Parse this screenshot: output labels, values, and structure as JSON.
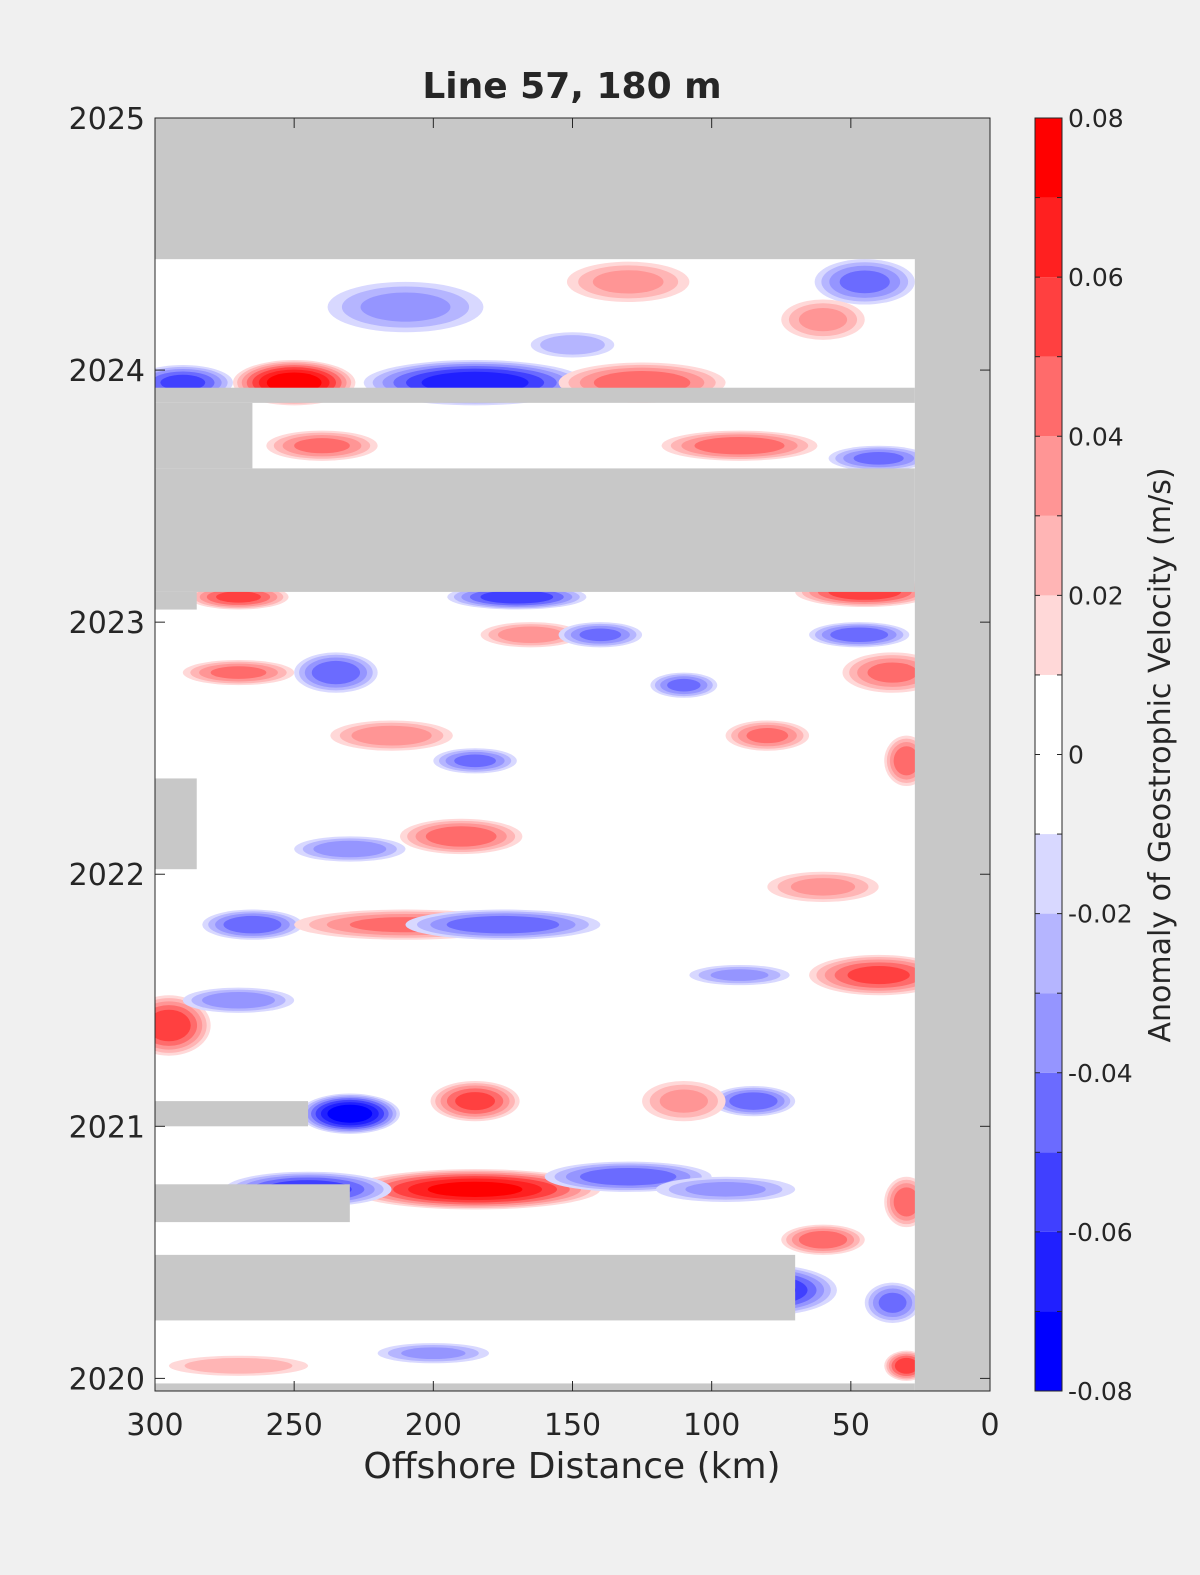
{
  "chart_data": {
    "type": "heatmap",
    "title": "Line 57, 180 m",
    "xlabel": "Offshore Distance (km)",
    "ylabel": "",
    "xlim": [
      300,
      0
    ],
    "ylim": [
      2019.95,
      2025
    ],
    "x_ticks": [
      "300",
      "250",
      "200",
      "150",
      "100",
      "50",
      "0"
    ],
    "x_tick_values": [
      300,
      250,
      200,
      150,
      100,
      50,
      0
    ],
    "y_ticks": [
      "2020",
      "2021",
      "2022",
      "2023",
      "2024",
      "2025"
    ],
    "y_tick_values": [
      2020,
      2021,
      2022,
      2023,
      2024,
      2025
    ],
    "colorbar": {
      "label": "Anomaly of Geostrophic Velocity (m/s)",
      "tick_labels": [
        "0.08",
        "0.06",
        "0.04",
        "0.02",
        "0",
        "-0.02",
        "-0.04",
        "-0.06",
        "-0.08"
      ],
      "tick_values": [
        0.08,
        0.06,
        0.04,
        0.02,
        0,
        -0.02,
        -0.04,
        -0.06,
        -0.08
      ],
      "levels": [
        -0.08,
        -0.07,
        -0.06,
        -0.05,
        -0.04,
        -0.03,
        -0.02,
        -0.01,
        0,
        0.01,
        0.02,
        0.03,
        0.04,
        0.05,
        0.06,
        0.07,
        0.08
      ],
      "colors": [
        "#0000ff",
        "#2020ff",
        "#4040ff",
        "#6b6bff",
        "#9595ff",
        "#b5b5ff",
        "#d8d8ff",
        "#ffffff",
        "#ffffff",
        "#ffd8d8",
        "#ffb5b5",
        "#ff9595",
        "#ff6b6b",
        "#ff4040",
        "#ff2020",
        "#ff0000"
      ]
    },
    "colors": {
      "no_data": "#c8c8c8",
      "background": "#f0f0f0",
      "axis": "#262626"
    },
    "no_data_regions": [
      {
        "x": [
          300,
          0
        ],
        "y": [
          2024.44,
          2025
        ]
      },
      {
        "x": [
          27,
          0
        ],
        "y": [
          2019.95,
          2025
        ]
      },
      {
        "x": [
          300,
          27
        ],
        "y": [
          2023.12,
          2023.61
        ]
      },
      {
        "x": [
          300,
          27
        ],
        "y": [
          2023.87,
          2023.93
        ]
      },
      {
        "x": [
          300,
          265
        ],
        "y": [
          2023.61,
          2023.87
        ]
      },
      {
        "x": [
          300,
          285
        ],
        "y": [
          2023.05,
          2023.12
        ]
      },
      {
        "x": [
          300,
          285
        ],
        "y": [
          2022.02,
          2022.38
        ]
      },
      {
        "x": [
          300,
          245
        ],
        "y": [
          2021.0,
          2021.1
        ]
      },
      {
        "x": [
          300,
          230
        ],
        "y": [
          2020.62,
          2020.77
        ]
      },
      {
        "x": [
          300,
          70
        ],
        "y": [
          2020.23,
          2020.49
        ]
      },
      {
        "x": [
          300,
          27
        ],
        "y": [
          2019.95,
          2019.98
        ]
      }
    ],
    "anomalies": [
      {
        "x": 250,
        "y": 2023.95,
        "v": 0.075,
        "rx": 22,
        "ry": 0.09
      },
      {
        "x": 290,
        "y": 2023.95,
        "v": -0.05,
        "rx": 18,
        "ry": 0.07
      },
      {
        "x": 185,
        "y": 2023.95,
        "v": -0.065,
        "rx": 40,
        "ry": 0.09
      },
      {
        "x": 125,
        "y": 2023.95,
        "v": 0.045,
        "rx": 30,
        "ry": 0.08
      },
      {
        "x": 130,
        "y": 2024.35,
        "v": 0.03,
        "rx": 22,
        "ry": 0.08
      },
      {
        "x": 210,
        "y": 2024.25,
        "v": -0.03,
        "rx": 28,
        "ry": 0.1
      },
      {
        "x": 45,
        "y": 2024.35,
        "v": -0.04,
        "rx": 18,
        "ry": 0.09
      },
      {
        "x": 60,
        "y": 2024.2,
        "v": 0.03,
        "rx": 15,
        "ry": 0.08
      },
      {
        "x": 150,
        "y": 2024.1,
        "v": -0.025,
        "rx": 15,
        "ry": 0.05
      },
      {
        "x": 240,
        "y": 2023.7,
        "v": 0.04,
        "rx": 20,
        "ry": 0.06
      },
      {
        "x": 90,
        "y": 2023.7,
        "v": 0.045,
        "rx": 28,
        "ry": 0.06
      },
      {
        "x": 40,
        "y": 2023.65,
        "v": -0.04,
        "rx": 18,
        "ry": 0.05
      },
      {
        "x": 270,
        "y": 2023.1,
        "v": 0.05,
        "rx": 18,
        "ry": 0.05
      },
      {
        "x": 170,
        "y": 2023.1,
        "v": -0.055,
        "rx": 25,
        "ry": 0.05
      },
      {
        "x": 45,
        "y": 2023.12,
        "v": 0.055,
        "rx": 25,
        "ry": 0.06
      },
      {
        "x": 270,
        "y": 2022.8,
        "v": 0.04,
        "rx": 20,
        "ry": 0.05
      },
      {
        "x": 235,
        "y": 2022.8,
        "v": -0.045,
        "rx": 15,
        "ry": 0.08
      },
      {
        "x": 215,
        "y": 2022.55,
        "v": 0.035,
        "rx": 22,
        "ry": 0.06
      },
      {
        "x": 165,
        "y": 2022.95,
        "v": 0.035,
        "rx": 18,
        "ry": 0.05
      },
      {
        "x": 140,
        "y": 2022.95,
        "v": -0.04,
        "rx": 15,
        "ry": 0.05
      },
      {
        "x": 47,
        "y": 2022.95,
        "v": -0.045,
        "rx": 18,
        "ry": 0.05
      },
      {
        "x": 35,
        "y": 2022.8,
        "v": 0.04,
        "rx": 18,
        "ry": 0.08
      },
      {
        "x": 185,
        "y": 2022.45,
        "v": -0.04,
        "rx": 15,
        "ry": 0.05
      },
      {
        "x": 110,
        "y": 2022.75,
        "v": -0.04,
        "rx": 12,
        "ry": 0.05
      },
      {
        "x": 80,
        "y": 2022.55,
        "v": 0.04,
        "rx": 15,
        "ry": 0.06
      },
      {
        "x": 30,
        "y": 2022.45,
        "v": 0.045,
        "rx": 8,
        "ry": 0.1
      },
      {
        "x": 190,
        "y": 2022.15,
        "v": 0.045,
        "rx": 22,
        "ry": 0.07
      },
      {
        "x": 230,
        "y": 2022.1,
        "v": -0.035,
        "rx": 20,
        "ry": 0.05
      },
      {
        "x": 265,
        "y": 2021.8,
        "v": -0.045,
        "rx": 18,
        "ry": 0.06
      },
      {
        "x": 210,
        "y": 2021.8,
        "v": 0.04,
        "rx": 40,
        "ry": 0.06
      },
      {
        "x": 175,
        "y": 2021.8,
        "v": -0.045,
        "rx": 35,
        "ry": 0.06
      },
      {
        "x": 60,
        "y": 2021.95,
        "v": 0.03,
        "rx": 20,
        "ry": 0.06
      },
      {
        "x": 40,
        "y": 2021.6,
        "v": 0.05,
        "rx": 25,
        "ry": 0.08
      },
      {
        "x": 90,
        "y": 2021.6,
        "v": -0.03,
        "rx": 18,
        "ry": 0.04
      },
      {
        "x": 295,
        "y": 2021.4,
        "v": 0.055,
        "rx": 15,
        "ry": 0.12
      },
      {
        "x": 270,
        "y": 2021.5,
        "v": -0.035,
        "rx": 20,
        "ry": 0.05
      },
      {
        "x": 230,
        "y": 2021.05,
        "v": -0.075,
        "rx": 18,
        "ry": 0.08
      },
      {
        "x": 185,
        "y": 2021.1,
        "v": 0.05,
        "rx": 16,
        "ry": 0.08
      },
      {
        "x": 85,
        "y": 2021.1,
        "v": -0.045,
        "rx": 15,
        "ry": 0.06
      },
      {
        "x": 110,
        "y": 2021.1,
        "v": 0.03,
        "rx": 15,
        "ry": 0.08
      },
      {
        "x": 185,
        "y": 2020.75,
        "v": 0.07,
        "rx": 45,
        "ry": 0.08
      },
      {
        "x": 245,
        "y": 2020.75,
        "v": -0.055,
        "rx": 30,
        "ry": 0.07
      },
      {
        "x": 130,
        "y": 2020.8,
        "v": -0.045,
        "rx": 30,
        "ry": 0.06
      },
      {
        "x": 95,
        "y": 2020.75,
        "v": -0.03,
        "rx": 25,
        "ry": 0.05
      },
      {
        "x": 30,
        "y": 2020.7,
        "v": 0.045,
        "rx": 8,
        "ry": 0.1
      },
      {
        "x": 80,
        "y": 2020.35,
        "v": -0.06,
        "rx": 25,
        "ry": 0.1
      },
      {
        "x": 60,
        "y": 2020.55,
        "v": 0.045,
        "rx": 15,
        "ry": 0.06
      },
      {
        "x": 30,
        "y": 2020.05,
        "v": 0.055,
        "rx": 8,
        "ry": 0.06
      },
      {
        "x": 35,
        "y": 2020.3,
        "v": -0.04,
        "rx": 10,
        "ry": 0.08
      },
      {
        "x": 200,
        "y": 2020.1,
        "v": -0.03,
        "rx": 20,
        "ry": 0.04
      },
      {
        "x": 270,
        "y": 2020.05,
        "v": 0.025,
        "rx": 25,
        "ry": 0.04
      }
    ]
  }
}
